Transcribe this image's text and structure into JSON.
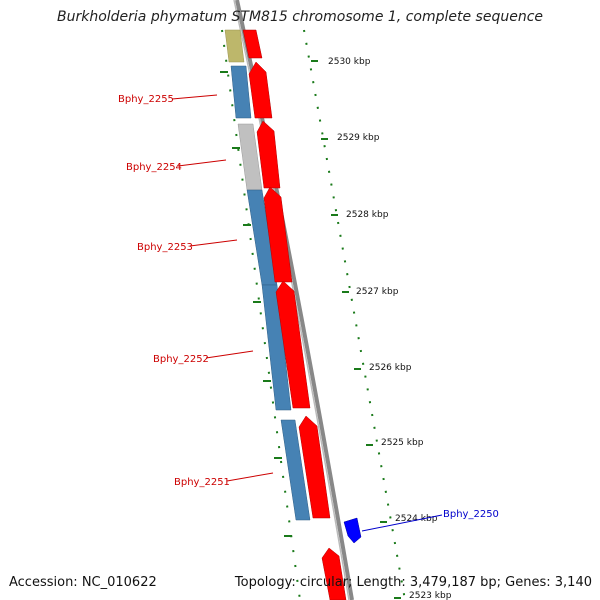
{
  "title": "Burkholderia phymatum STM815 chromosome 1, complete sequence",
  "accession_text": "Accession: NC_010622",
  "topology_text": "Topology: circular; Length: 3,479,187 bp; Genes: 3,140",
  "ticks": [
    "2530 kbp",
    "2529 kbp",
    "2528 kbp",
    "2527 kbp",
    "2526 kbp",
    "2525 kbp",
    "2524 kbp",
    "2523 kbp"
  ],
  "gene_labels_left": [
    "Bphy_2255",
    "Bphy_2254",
    "Bphy_2253",
    "Bphy_2252",
    "Bphy_2251"
  ],
  "gene_label_right": "Bphy_2250",
  "colors": {
    "label_red": "#cc0000",
    "label_blue": "#0000cc",
    "tick_green": "#1a7a1a",
    "feature_red": "#ff0000",
    "feature_blue": "#4682b4",
    "feature_gray": "#c0c0c0",
    "feature_olive": "#bdb76b",
    "backbone": "#888888"
  }
}
